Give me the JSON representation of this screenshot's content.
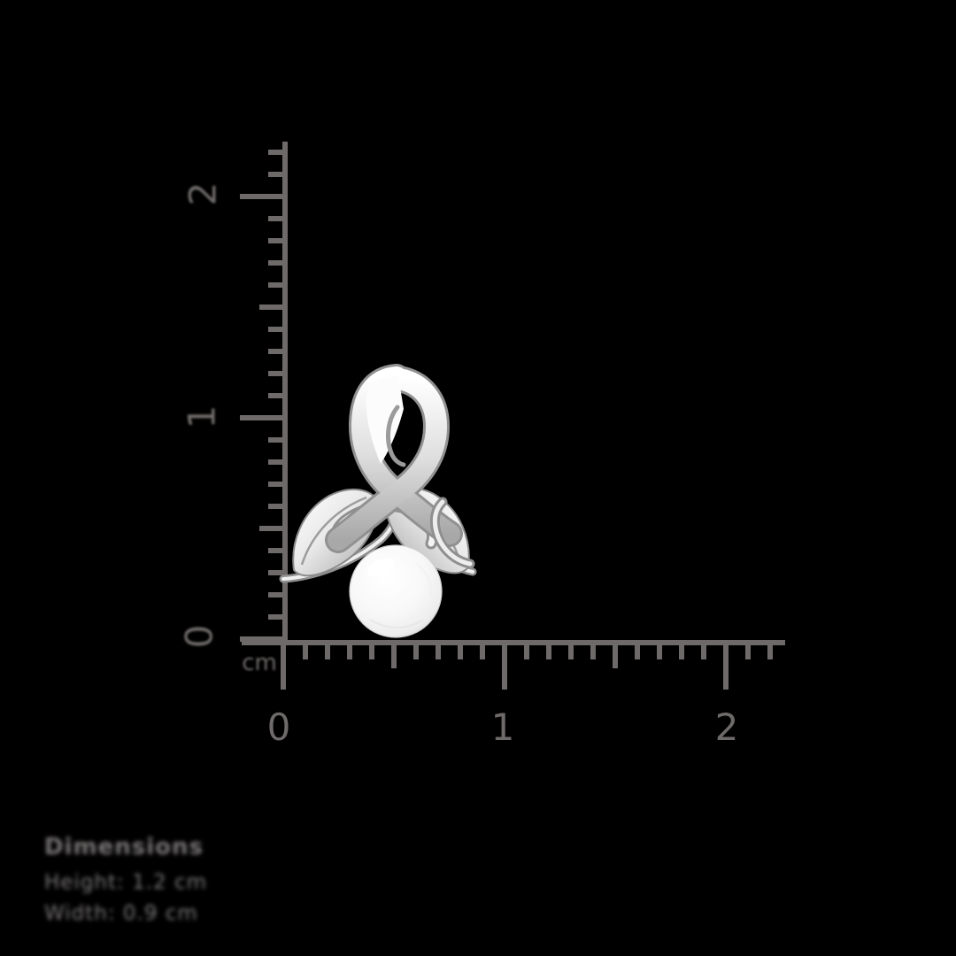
{
  "scene": {
    "background_color": "#000000",
    "description": "Silver ribbon-and-leaves pendant with a white pearl, photographed against a centimeter measurement ruler"
  },
  "ruler": {
    "color": "#6e6a69",
    "unit": "cm",
    "vertical_axis": {
      "tick_labels": [
        "0",
        "1",
        "2"
      ],
      "minor_step_cm": 0.1,
      "medium_step_cm": 0.5,
      "major_step_cm": 1.0,
      "range_cm": [
        0,
        2.2
      ]
    },
    "horizontal_axis": {
      "tick_labels": [
        "0",
        "1",
        "2"
      ],
      "minor_step_cm": 0.1,
      "medium_step_cm": 0.5,
      "major_step_cm": 1.0,
      "range_cm": [
        0,
        2.2
      ]
    }
  },
  "pendant": {
    "kind": "ribbon loop with two leaves and pearl",
    "metal_color_light": "#ffffff",
    "metal_color_mid": "#d9d9d9",
    "metal_color_dark": "#8f8f8f",
    "pearl_color": "#f7f7f7",
    "approx_width_cm": 0.9,
    "approx_height_cm": 1.25
  },
  "caption": {
    "title": "Dimensions",
    "lines": [
      "Height: 1.2 cm",
      "Width: 0.9 cm"
    ],
    "text_color": "#7b7777",
    "blurred": true
  }
}
